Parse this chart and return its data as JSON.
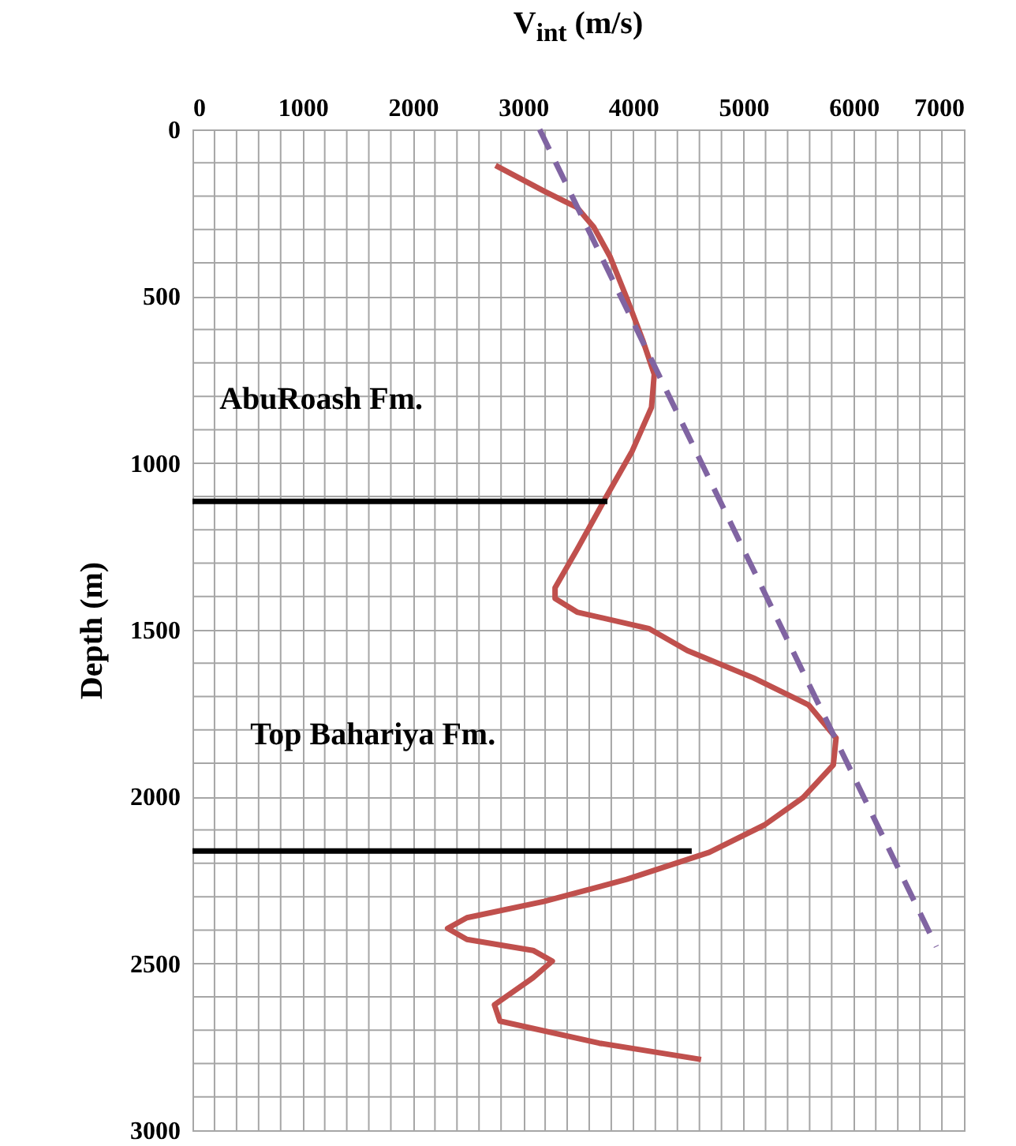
{
  "chart_data": {
    "type": "line",
    "xlabel": "V$_{int}$ (m/s)",
    "ylabel": "Depth (m)",
    "xlim": [
      0,
      7000
    ],
    "ylim": [
      3000,
      0
    ],
    "xticks": [
      0,
      {
        "value": 200,
        "label": null
      },
      {
        "value": 400,
        "label": null
      },
      {
        "value": 600,
        "label": null
      },
      {
        "value": 800,
        "label": null
      },
      1000,
      {
        "value": 1200,
        "label": null
      },
      {
        "value": 1400,
        "label": null
      },
      {
        "value": 1600,
        "label": null
      },
      {
        "value": 1800,
        "label": null
      },
      2000,
      {
        "value": 2200,
        "label": null
      },
      {
        "value": 2400,
        "label": null
      },
      {
        "value": 2600,
        "label": null
      },
      {
        "value": 2800,
        "label": null
      },
      3000,
      {
        "value": 3200,
        "label": null
      },
      {
        "value": 3400,
        "label": null
      },
      {
        "value": 3600,
        "label": null
      },
      {
        "value": 3800,
        "label": null
      },
      4000,
      {
        "value": 4200,
        "label": null
      },
      {
        "value": 4400,
        "label": null
      },
      {
        "value": 4600,
        "label": null
      },
      {
        "value": 4800,
        "label": null
      },
      5000,
      {
        "value": 5200,
        "label": null
      },
      {
        "value": 5400,
        "label": null
      },
      {
        "value": 5600,
        "label": null
      },
      {
        "value": 5800,
        "label": null
      },
      6000,
      {
        "value": 6200,
        "label": null
      },
      {
        "value": 6400,
        "label": null
      },
      {
        "value": 6600,
        "label": null
      },
      {
        "value": 6800,
        "label": null
      },
      7000
    ],
    "yticks": [
      0,
      {
        "value": 100,
        "label": null
      },
      {
        "value": 200,
        "label": null
      },
      {
        "value": 300,
        "label": null
      },
      {
        "value": 400,
        "label": null
      },
      500,
      {
        "value": 600,
        "label": null
      },
      {
        "value": 700,
        "label": null
      },
      {
        "value": 800,
        "label": null
      },
      {
        "value": 900,
        "label": null
      },
      1000,
      {
        "value": 1100,
        "label": null
      },
      {
        "value": 1200,
        "label": null
      },
      {
        "value": 1300,
        "label": null
      },
      {
        "value": 1400,
        "label": null
      },
      1500,
      {
        "value": 1600,
        "label": null
      },
      {
        "value": 1700,
        "label": null
      },
      {
        "value": 1800,
        "label": null
      },
      {
        "value": 1900,
        "label": null
      },
      2000,
      {
        "value": 2100,
        "label": null
      },
      {
        "value": 2200,
        "label": null
      },
      {
        "value": 2300,
        "label": null
      },
      {
        "value": 2400,
        "label": null
      },
      2500,
      {
        "value": 2600,
        "label": null
      },
      {
        "value": 2700,
        "label": null
      },
      {
        "value": 2800,
        "label": null
      },
      {
        "value": 2900,
        "label": null
      },
      3000
    ],
    "grid": true,
    "series": [
      {
        "color": "#c0504d",
        "line_style": "solid",
        "x": [
          2750,
          3190,
          3490,
          3640,
          3790,
          3940,
          4090,
          4190,
          4165,
          3990,
          3765,
          3490,
          3290,
          3290,
          3490,
          4140,
          4490,
          5090,
          5590,
          5840,
          5815,
          5540,
          5190,
          4690,
          3940,
          3190,
          2490,
          2315,
          2490,
          3090,
          3265,
          3090,
          2740,
          2790,
          3690,
          4615
        ],
        "values": [
          108,
          185,
          234,
          292,
          382,
          505,
          636,
          734,
          833,
          964,
          1095,
          1259,
          1374,
          1406,
          1447,
          1496,
          1562,
          1644,
          1725,
          1824,
          1905,
          2003,
          2085,
          2167,
          2248,
          2314,
          2363,
          2395,
          2428,
          2461,
          2493,
          2543,
          2624,
          2673,
          2739,
          2788
        ]
      },
      {
        "color": "#8064a2",
        "line_style": "dashed",
        "x": [
          3150,
          6750
        ],
        "values": [
          0,
          2450
        ]
      },
      {
        "color": "#000000",
        "line_style": "solid",
        "x": [
          0,
          3765
        ],
        "values": [
          1115,
          1115
        ]
      },
      {
        "color": "#000000",
        "line_style": "solid",
        "x": [
          0,
          4530
        ],
        "values": [
          2163,
          2163
        ]
      }
    ],
    "annotations": [
      "AbuRoash Fm.",
      "Top Bahariya Fm."
    ]
  }
}
